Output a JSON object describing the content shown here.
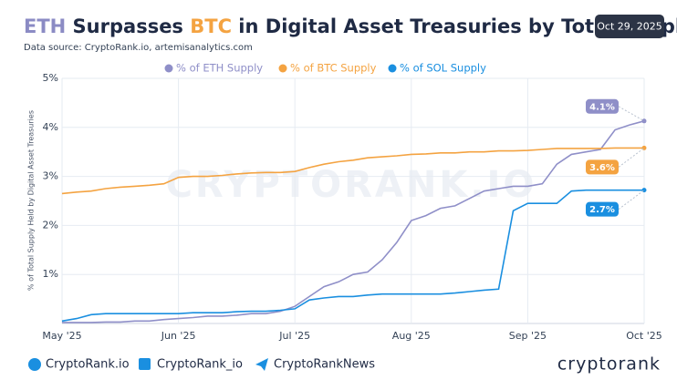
{
  "chart_data": {
    "type": "line",
    "title_parts": [
      {
        "text": "ETH",
        "color": "#8b8bc4"
      },
      {
        "text": " Surpasses ",
        "color": "#1f2a44"
      },
      {
        "text": "BTC",
        "color": "#f4a341"
      },
      {
        "text": " in Digital Asset Treasuries by Total Supply",
        "color": "#1f2a44"
      }
    ],
    "date": "Oct 29, 2025",
    "source": "Data source: CryptoRank.io, artemisanalytics.com",
    "ylabel": "% of Total Supply Held by Digital Asset Treasuries",
    "watermark": "CRYPTORANK.IO",
    "xlim": [
      0,
      5
    ],
    "xticks": [
      {
        "value": 0,
        "label": "May '25"
      },
      {
        "value": 1,
        "label": "Jun '25"
      },
      {
        "value": 2,
        "label": "Jul '25"
      },
      {
        "value": 3,
        "label": "Aug '25"
      },
      {
        "value": 4,
        "label": "Sep '25"
      },
      {
        "value": 5,
        "label": "Oct '25"
      }
    ],
    "ylim": [
      0,
      5
    ],
    "yticks": [
      {
        "value": 1,
        "label": "1%"
      },
      {
        "value": 2,
        "label": "2%"
      },
      {
        "value": 3,
        "label": "3%"
      },
      {
        "value": 4,
        "label": "4%"
      },
      {
        "value": 5,
        "label": "5%"
      }
    ],
    "grid": true,
    "x": [
      0,
      0.125,
      0.25,
      0.375,
      0.5,
      0.625,
      0.75,
      0.875,
      1,
      1.125,
      1.25,
      1.375,
      1.5,
      1.625,
      1.75,
      1.875,
      2,
      2.125,
      2.25,
      2.375,
      2.5,
      2.625,
      2.75,
      2.875,
      3,
      3.125,
      3.25,
      3.375,
      3.5,
      3.625,
      3.75,
      3.875,
      4,
      4.125,
      4.25,
      4.375,
      4.5,
      4.625,
      4.75,
      4.875,
      5
    ],
    "series": [
      {
        "name": "% of ETH Supply",
        "color": "#8f8fc8",
        "values": [
          0.02,
          0.02,
          0.02,
          0.03,
          0.03,
          0.05,
          0.05,
          0.08,
          0.1,
          0.12,
          0.15,
          0.15,
          0.17,
          0.2,
          0.2,
          0.25,
          0.35,
          0.55,
          0.75,
          0.85,
          1.0,
          1.05,
          1.3,
          1.65,
          2.1,
          2.2,
          2.35,
          2.4,
          2.55,
          2.7,
          2.75,
          2.8,
          2.8,
          2.85,
          3.25,
          3.45,
          3.5,
          3.55,
          3.95,
          4.05,
          4.13
        ],
        "value_labels": [
          null,
          null,
          null,
          null,
          null,
          null,
          null,
          null,
          null,
          null,
          null,
          null,
          null,
          null,
          null,
          null,
          null,
          null,
          null,
          null,
          null,
          null,
          null,
          null,
          null,
          null,
          null,
          null,
          null,
          null,
          null,
          null,
          null,
          null,
          null,
          null,
          null,
          null,
          null,
          null,
          "4.1%"
        ]
      },
      {
        "name": "% of BTC Supply",
        "color": "#f4a341",
        "values": [
          2.65,
          2.68,
          2.7,
          2.75,
          2.78,
          2.8,
          2.82,
          2.85,
          2.98,
          3.0,
          3.0,
          3.02,
          3.05,
          3.07,
          3.08,
          3.08,
          3.1,
          3.18,
          3.25,
          3.3,
          3.33,
          3.38,
          3.4,
          3.42,
          3.45,
          3.46,
          3.48,
          3.48,
          3.5,
          3.5,
          3.52,
          3.52,
          3.53,
          3.55,
          3.57,
          3.57,
          3.57,
          3.57,
          3.58,
          3.58,
          3.58
        ],
        "value_labels": [
          null,
          null,
          null,
          null,
          null,
          null,
          null,
          null,
          null,
          null,
          null,
          null,
          null,
          null,
          null,
          null,
          null,
          null,
          null,
          null,
          null,
          null,
          null,
          null,
          null,
          null,
          null,
          null,
          null,
          null,
          null,
          null,
          null,
          null,
          null,
          null,
          null,
          null,
          null,
          null,
          "3.6%"
        ]
      },
      {
        "name": "% of SOL Supply",
        "color": "#1a8fe0",
        "values": [
          0.05,
          0.1,
          0.18,
          0.2,
          0.2,
          0.2,
          0.2,
          0.2,
          0.2,
          0.22,
          0.22,
          0.22,
          0.24,
          0.25,
          0.25,
          0.27,
          0.3,
          0.48,
          0.52,
          0.55,
          0.55,
          0.58,
          0.6,
          0.6,
          0.6,
          0.6,
          0.6,
          0.62,
          0.65,
          0.68,
          0.7,
          2.3,
          2.45,
          2.45,
          2.45,
          2.7,
          2.72,
          2.72,
          2.72,
          2.72,
          2.72
        ],
        "value_labels": [
          null,
          null,
          null,
          null,
          null,
          null,
          null,
          null,
          null,
          null,
          null,
          null,
          null,
          null,
          null,
          null,
          null,
          null,
          null,
          null,
          null,
          null,
          null,
          null,
          null,
          null,
          null,
          null,
          null,
          null,
          null,
          null,
          null,
          null,
          null,
          null,
          null,
          null,
          null,
          null,
          "2.7%"
        ]
      }
    ]
  },
  "footer": {
    "links": [
      "CryptoRank.io",
      "CryptoRank_io",
      "CryptoRankNews"
    ],
    "logo": "cryptorank"
  }
}
